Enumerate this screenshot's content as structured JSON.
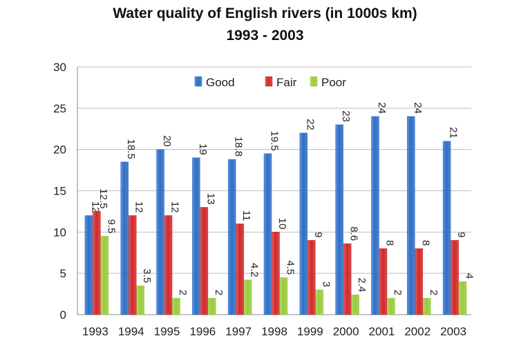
{
  "chart_data": {
    "type": "bar",
    "title": "Water quality of English rivers (in 1000s km)",
    "subtitle": "1993 - 2003",
    "categories": [
      "1993",
      "1994",
      "1995",
      "1996",
      "1997",
      "1998",
      "1999",
      "2000",
      "2001",
      "2002",
      "2003"
    ],
    "series": [
      {
        "name": "Good",
        "color": "#2E6FC7",
        "values": [
          12,
          18.5,
          20,
          19,
          18.8,
          19.5,
          22,
          23,
          24,
          24,
          21
        ],
        "labels": [
          "12",
          "18.5",
          "20",
          "19",
          "18.8",
          "19.5",
          "22",
          "23",
          "24",
          "24",
          "21"
        ]
      },
      {
        "name": "Fair",
        "color": "#D12A2A",
        "values": [
          12.5,
          12,
          12,
          13,
          11,
          10,
          9,
          8.6,
          8,
          8,
          9
        ],
        "labels": [
          "12.5",
          "12",
          "12",
          "13",
          "11",
          "10",
          "9",
          "8.6",
          "8",
          "8",
          "9"
        ]
      },
      {
        "name": "Poor",
        "color": "#9ACB3C",
        "values": [
          9.5,
          3.5,
          2,
          2,
          4.2,
          4.5,
          3,
          2.4,
          2,
          2,
          4
        ],
        "labels": [
          "9.5",
          "3.5",
          "2",
          "2",
          "4.2",
          "4.5",
          "3",
          "2.4",
          "2",
          "2",
          "4"
        ]
      }
    ],
    "ylim": [
      0,
      30
    ],
    "yticks": [
      "0",
      "5",
      "10",
      "15",
      "20",
      "25",
      "30"
    ],
    "grid": true,
    "legend": "top"
  }
}
